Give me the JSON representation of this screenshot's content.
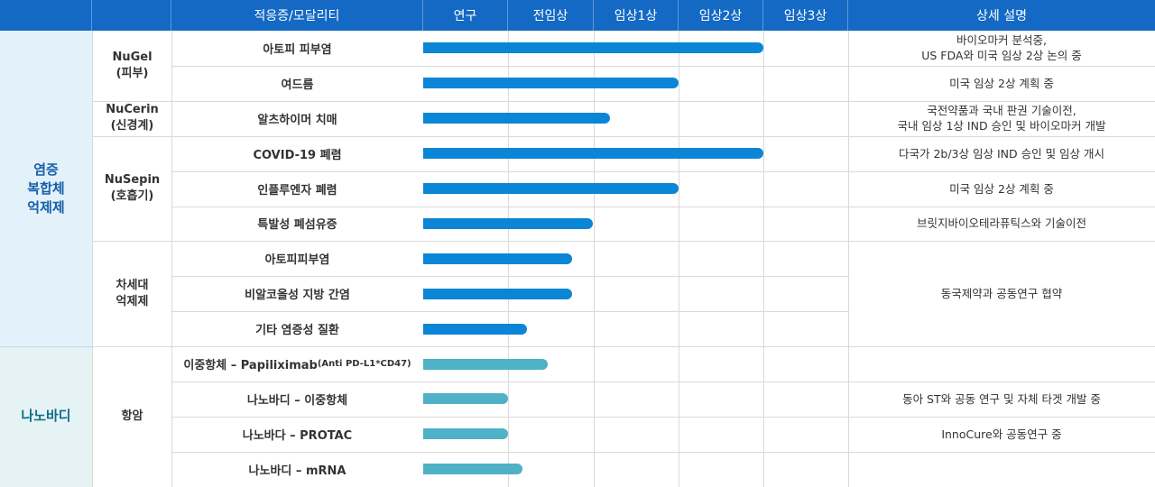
{
  "header": {
    "indication": "적응증/모달리티",
    "detail": "상세 설명"
  },
  "chart_data": {
    "type": "bar",
    "orientation": "horizontal",
    "stages": [
      "연구",
      "전임상",
      "임상1상",
      "임상2상",
      "임상3상"
    ],
    "stage_scale": [
      0,
      5
    ],
    "colors": {
      "inflammation": "#0b86d6",
      "nanobody": "#4fb1c6"
    },
    "categories": [
      {
        "label": "염증\n복합체\n억제제",
        "key": "inflammation"
      },
      {
        "label": "나노바디",
        "key": "nanobody"
      }
    ],
    "groups": [
      {
        "label": "NuGel\n(피부)"
      },
      {
        "label": "NuCerin\n(신경계)"
      },
      {
        "label": "NuSepin\n(호흡기)"
      },
      {
        "label": "차세대\n억제제"
      },
      {
        "label": "항암"
      }
    ],
    "rows": [
      {
        "name": "아토피 피부염",
        "value": 4.0
      },
      {
        "name": "여드름",
        "value": 3.0
      },
      {
        "name": "알츠하이머 치매",
        "value": 2.2
      },
      {
        "name": "COVID-19 폐렴",
        "value": 4.0
      },
      {
        "name": "인플루엔자 폐렴",
        "value": 3.0
      },
      {
        "name": "특발성 폐섬유증",
        "value": 2.0
      },
      {
        "name": "아토피피부염",
        "value": 1.75
      },
      {
        "name": "비알코올성 지방 간염",
        "value": 1.75
      },
      {
        "name": "기타 염증성 질환",
        "value": 1.22
      },
      {
        "name": "이중항체 – Papiliximab",
        "name_suffix": "(Anti PD-L1*CD47)",
        "value": 1.47
      },
      {
        "name": "나노바디 – 이중항체",
        "value": 1.0
      },
      {
        "name": "나노바다 – PROTAC",
        "value": 1.0
      },
      {
        "name": "나노바디 – mRNA",
        "value": 1.17
      }
    ],
    "details": [
      "바이오마커 분석중,\nUS FDA와 미국 임상 2상 논의 중",
      "미국 임상 2상 계획 중",
      "국전약품과  국내 판권 기술이전,\n국내 임상 1상 IND 승인 및 바이오마커 개발",
      "다국가 2b/3상 임상 IND 승인 및 임상 개시",
      "미국 임상 2상 계획 중",
      "브릿지바이오테라퓨틱스와 기술이전",
      "동국제약과 공동연구 협약",
      "",
      "동아 ST와 공동 연구 및 자체 타겟 개발 중",
      "InnoCure와 공동연구 중",
      ""
    ]
  }
}
